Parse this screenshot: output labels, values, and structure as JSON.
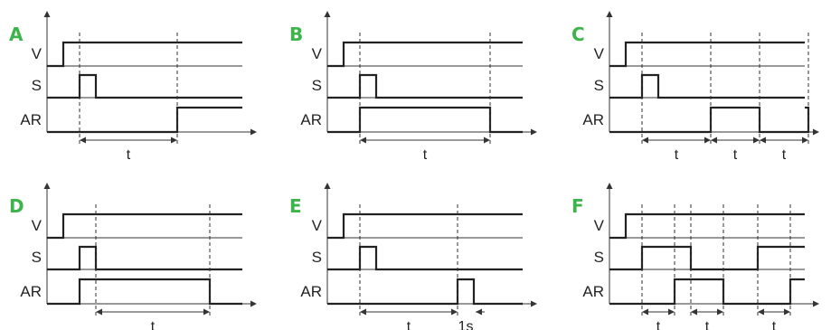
{
  "accent_color": "#3cb44b",
  "signals": [
    "V",
    "S",
    "AR"
  ],
  "panels": [
    {
      "letter": "A",
      "waves": {
        "V": [
          [
            0,
            0
          ],
          [
            1,
            1
          ]
        ],
        "S": [
          [
            0,
            0
          ],
          [
            2,
            1
          ],
          [
            3,
            0
          ]
        ],
        "AR": [
          [
            0,
            0
          ],
          [
            4,
            1
          ]
        ]
      },
      "guides": [
        2,
        4
      ],
      "dims": [
        {
          "from": 2,
          "to": 4,
          "label": "t",
          "style": "double"
        }
      ]
    },
    {
      "letter": "B",
      "waves": {
        "V": [
          [
            0,
            0
          ],
          [
            1,
            1
          ]
        ],
        "S": [
          [
            0,
            0
          ],
          [
            2,
            1
          ],
          [
            3,
            0
          ]
        ],
        "AR": [
          [
            0,
            0
          ],
          [
            2,
            1
          ],
          [
            5,
            0
          ]
        ]
      },
      "guides": [
        2,
        5
      ],
      "dims": [
        {
          "from": 2,
          "to": 5,
          "label": "t",
          "style": "double"
        }
      ]
    },
    {
      "letter": "C",
      "waves": {
        "V": [
          [
            0,
            0
          ],
          [
            1,
            1
          ]
        ],
        "S": [
          [
            0,
            0
          ],
          [
            2,
            1
          ],
          [
            3,
            0
          ]
        ],
        "AR": [
          [
            0,
            0
          ],
          [
            4,
            1
          ],
          [
            5,
            0
          ],
          [
            6,
            1
          ]
        ]
      },
      "guides": [
        2,
        4,
        5,
        6
      ],
      "dims": [
        {
          "from": 2,
          "to": 4,
          "label": "t",
          "style": "double"
        },
        {
          "from": 4,
          "to": 5,
          "label": "t",
          "style": "double"
        },
        {
          "from": 5,
          "to": 6,
          "label": "t",
          "style": "double"
        }
      ]
    },
    {
      "letter": "D",
      "waves": {
        "V": [
          [
            0,
            0
          ],
          [
            1,
            1
          ]
        ],
        "S": [
          [
            0,
            0
          ],
          [
            2,
            1
          ],
          [
            3,
            0
          ]
        ],
        "AR": [
          [
            0,
            0
          ],
          [
            2,
            1
          ],
          [
            5,
            0
          ]
        ]
      },
      "guides": [
        3,
        5
      ],
      "dims": [
        {
          "from": 3,
          "to": 5,
          "label": "t",
          "style": "double"
        }
      ]
    },
    {
      "letter": "E",
      "waves": {
        "V": [
          [
            0,
            0
          ],
          [
            1,
            1
          ]
        ],
        "S": [
          [
            0,
            0
          ],
          [
            2,
            1
          ],
          [
            3,
            0
          ]
        ],
        "AR": [
          [
            0,
            0
          ],
          [
            4,
            1
          ],
          [
            5,
            0
          ]
        ]
      },
      "guides": [
        2,
        4
      ],
      "dims": [
        {
          "from": 2,
          "to": 4,
          "label": "t",
          "style": "double"
        },
        {
          "from": 4,
          "to": 5,
          "label": "1s",
          "style": "outside"
        }
      ]
    },
    {
      "letter": "F",
      "waves": {
        "V": [
          [
            0,
            0
          ],
          [
            1,
            1
          ]
        ],
        "S": [
          [
            0,
            0
          ],
          [
            2,
            1
          ],
          [
            4,
            0
          ],
          [
            6,
            1
          ]
        ],
        "AR": [
          [
            0,
            0
          ],
          [
            3,
            1
          ],
          [
            5,
            0
          ],
          [
            7,
            1
          ]
        ]
      },
      "guides": [
        2,
        3,
        4,
        5,
        6,
        7
      ],
      "dims": [
        {
          "from": 2,
          "to": 3,
          "label": "t",
          "style": "double"
        },
        {
          "from": 4,
          "to": 5,
          "label": "t",
          "style": "double"
        },
        {
          "from": 6,
          "to": 7,
          "label": "t",
          "style": "double"
        }
      ]
    }
  ]
}
